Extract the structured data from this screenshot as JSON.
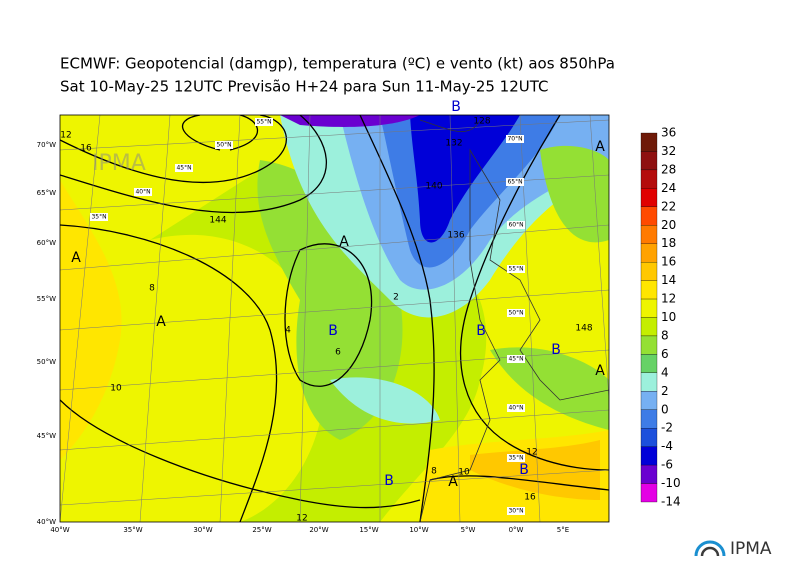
{
  "header": {
    "line1": "ECMWF:  Geopotencial (damgp), temperatura (ºC) e vento (kt) aos 850hPa",
    "line2": "Sat 10-May-25 12UTC Previsão H+24 para Sun 11-May-25 12UTC"
  },
  "colorbar": {
    "levels": [
      36,
      32,
      28,
      24,
      22,
      20,
      18,
      16,
      14,
      12,
      10,
      8,
      6,
      4,
      2,
      0,
      -2,
      -4,
      -6,
      -10,
      -14
    ],
    "colors": [
      "#6e1a08",
      "#8e1010",
      "#b40c0c",
      "#e00000",
      "#ff4a00",
      "#ff7a00",
      "#ffa200",
      "#ffc800",
      "#ffe600",
      "#eef500",
      "#c4ee00",
      "#94e034",
      "#66d266",
      "#9cf0dc",
      "#76b0f2",
      "#3e7ce6",
      "#1c50dc",
      "#0000d8",
      "#6a00d0",
      "#e400e4"
    ]
  },
  "lon_labels": [
    "40°W",
    "35°W",
    "30°W",
    "25°W",
    "20°W",
    "15°W",
    "10°W",
    "5°W",
    "0°W",
    "5°E"
  ],
  "lat_labels": [
    "70°W",
    "65°W",
    "60°W",
    "55°W",
    "50°W",
    "45°W",
    "40°W"
  ],
  "grid_labels": [
    "55°N",
    "50°N",
    "45°N",
    "40°N",
    "35°N",
    "70°N",
    "65°N",
    "60°N",
    "55°N",
    "50°N",
    "45°N",
    "40°N",
    "35°N",
    "30°N"
  ],
  "pressure_centers": [
    {
      "label": "A",
      "color": "#000000"
    },
    {
      "label": "A",
      "color": "#000000"
    },
    {
      "label": "A",
      "color": "#000000"
    },
    {
      "label": "B",
      "color": "#0000cc"
    },
    {
      "label": "B",
      "color": "#0000cc"
    },
    {
      "label": "B",
      "color": "#0000cc"
    },
    {
      "label": "B",
      "color": "#0000cc"
    },
    {
      "label": "A",
      "color": "#000000"
    },
    {
      "label": "A",
      "color": "#000000"
    },
    {
      "label": "B",
      "color": "#0000cc"
    },
    {
      "label": "A",
      "color": "#000000"
    },
    {
      "label": "B",
      "color": "#0000cc"
    }
  ],
  "contour_labels": [
    "12",
    "16",
    "8",
    "10",
    "4",
    "6",
    "2",
    "10",
    "8",
    "12",
    "16",
    "144",
    "140",
    "132",
    "128",
    "136",
    "148",
    "12"
  ],
  "logo": "IPMA"
}
